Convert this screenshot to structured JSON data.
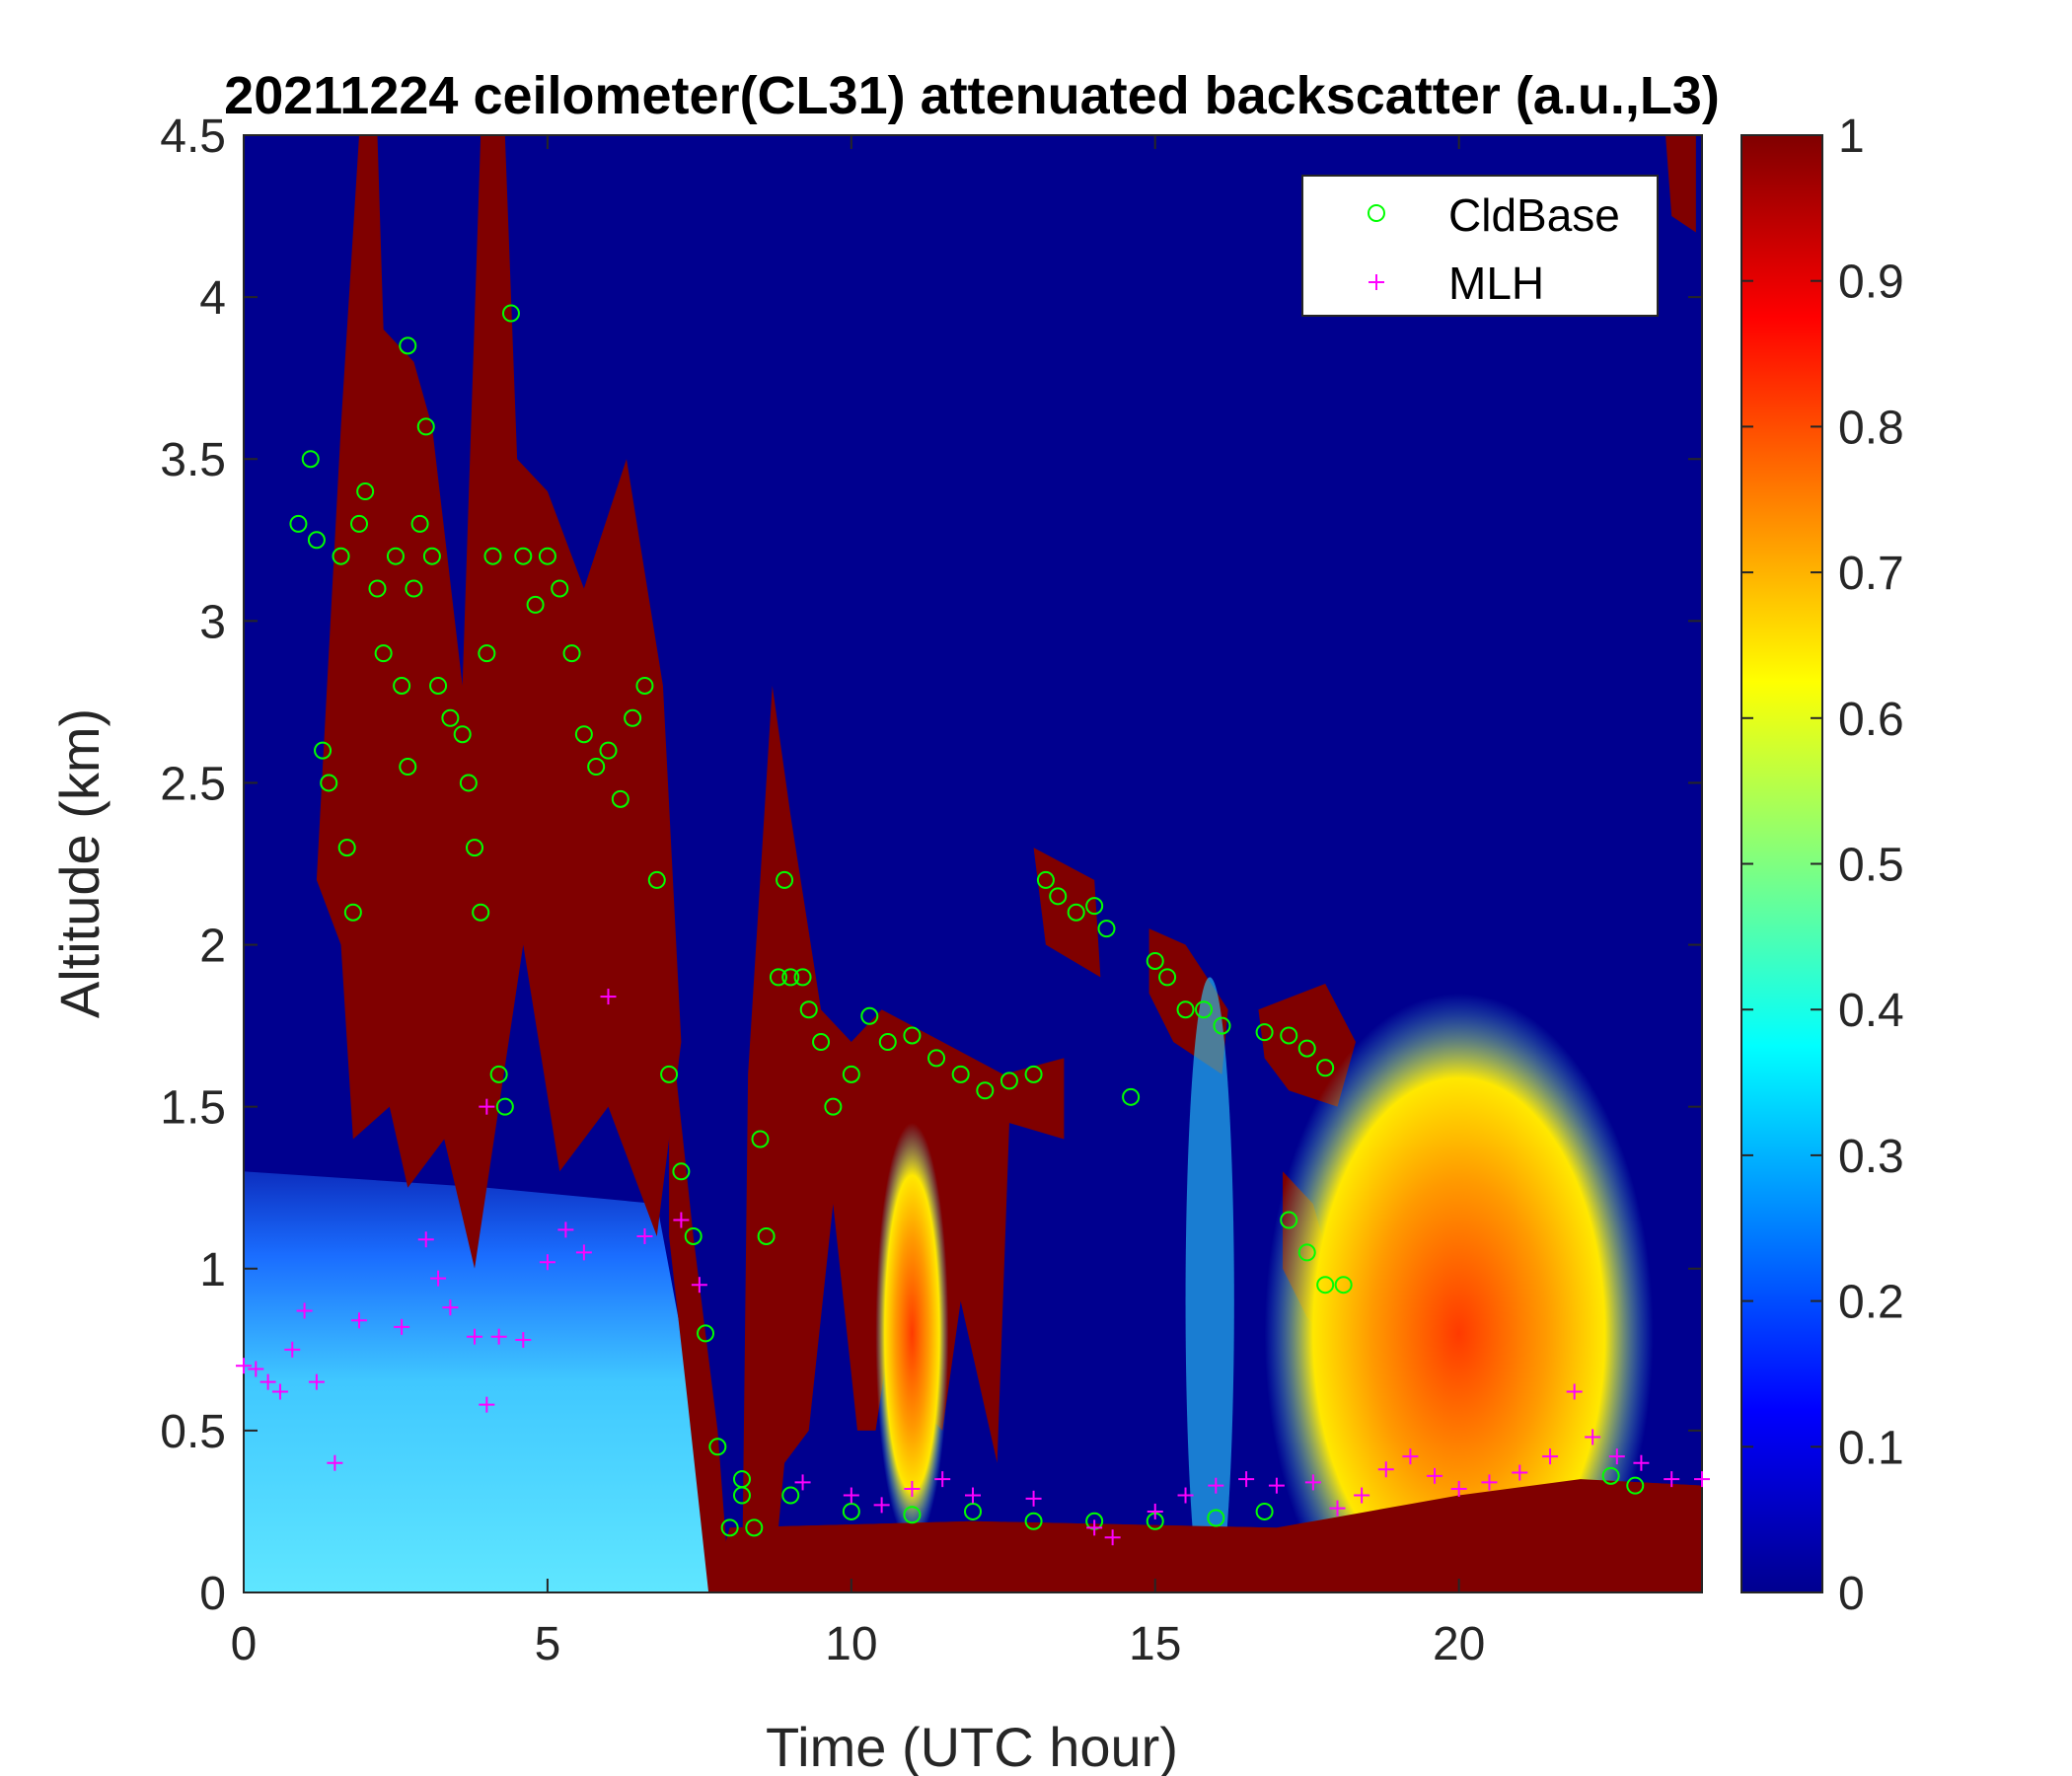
{
  "chart_data": {
    "type": "heatmap",
    "title": "20211224 ceilometer(CL31) attenuated backscatter (a.u.,L3)",
    "xlabel": "Time (UTC hour)",
    "ylabel": "Altitude (km)",
    "xlim": [
      0,
      24
    ],
    "ylim": [
      0,
      4.5
    ],
    "xticks": [
      0,
      5,
      10,
      15,
      20
    ],
    "yticks": [
      0,
      0.5,
      1,
      1.5,
      2,
      2.5,
      3,
      3.5,
      4,
      4.5
    ],
    "colorbar": {
      "range": [
        0,
        1
      ],
      "ticks": [
        0,
        0.1,
        0.2,
        0.3,
        0.4,
        0.5,
        0.6,
        0.7,
        0.8,
        0.9,
        1
      ],
      "colormap": "jet"
    },
    "legend": {
      "placement": "top-right",
      "entries": [
        {
          "name": "CldBase",
          "marker": "circle",
          "color": "#00ff00"
        },
        {
          "name": "MLH",
          "marker": "plus",
          "color": "#ff00ff"
        }
      ]
    },
    "series": [
      {
        "name": "CldBase",
        "points": [
          [
            0.9,
            3.3
          ],
          [
            1.1,
            3.5
          ],
          [
            1.2,
            3.25
          ],
          [
            1.3,
            2.6
          ],
          [
            1.4,
            2.5
          ],
          [
            1.6,
            3.2
          ],
          [
            1.7,
            2.3
          ],
          [
            1.8,
            2.1
          ],
          [
            1.9,
            3.3
          ],
          [
            2.0,
            3.4
          ],
          [
            2.2,
            3.1
          ],
          [
            2.3,
            2.9
          ],
          [
            2.5,
            3.2
          ],
          [
            2.6,
            2.8
          ],
          [
            2.7,
            2.55
          ],
          [
            2.8,
            3.1
          ],
          [
            2.9,
            3.3
          ],
          [
            3.0,
            3.6
          ],
          [
            3.1,
            3.2
          ],
          [
            3.2,
            2.8
          ],
          [
            3.4,
            2.7
          ],
          [
            3.6,
            2.65
          ],
          [
            3.7,
            2.5
          ],
          [
            3.8,
            2.3
          ],
          [
            3.9,
            2.1
          ],
          [
            4.0,
            2.9
          ],
          [
            4.1,
            3.2
          ],
          [
            4.2,
            1.6
          ],
          [
            4.3,
            1.5
          ],
          [
            4.6,
            3.2
          ],
          [
            4.8,
            3.05
          ],
          [
            5.0,
            3.2
          ],
          [
            5.2,
            3.1
          ],
          [
            5.4,
            2.9
          ],
          [
            5.6,
            2.65
          ],
          [
            5.8,
            2.55
          ],
          [
            6.0,
            2.6
          ],
          [
            6.2,
            2.45
          ],
          [
            6.4,
            2.7
          ],
          [
            6.6,
            2.8
          ],
          [
            6.8,
            2.2
          ],
          [
            7.0,
            1.6
          ],
          [
            7.2,
            1.3
          ],
          [
            7.4,
            1.1
          ],
          [
            7.6,
            0.8
          ],
          [
            7.8,
            0.45
          ],
          [
            8.0,
            0.2
          ],
          [
            8.2,
            0.35
          ],
          [
            8.4,
            0.2
          ],
          [
            8.5,
            1.4
          ],
          [
            8.6,
            1.1
          ],
          [
            8.8,
            1.9
          ],
          [
            8.9,
            2.2
          ],
          [
            9.0,
            1.9
          ],
          [
            9.2,
            1.9
          ],
          [
            9.3,
            1.8
          ],
          [
            9.5,
            1.7
          ],
          [
            9.7,
            1.5
          ],
          [
            10.0,
            1.6
          ],
          [
            10.3,
            1.78
          ],
          [
            10.6,
            1.7
          ],
          [
            11.0,
            1.72
          ],
          [
            11.4,
            1.65
          ],
          [
            11.8,
            1.6
          ],
          [
            12.2,
            1.55
          ],
          [
            12.6,
            1.58
          ],
          [
            13.0,
            1.6
          ],
          [
            13.2,
            2.2
          ],
          [
            13.4,
            2.15
          ],
          [
            13.7,
            2.1
          ],
          [
            14.0,
            2.12
          ],
          [
            14.2,
            2.05
          ],
          [
            14.6,
            1.53
          ],
          [
            15.0,
            1.95
          ],
          [
            15.2,
            1.9
          ],
          [
            15.5,
            1.8
          ],
          [
            15.8,
            1.8
          ],
          [
            16.1,
            1.75
          ],
          [
            16.8,
            1.73
          ],
          [
            17.2,
            1.72
          ],
          [
            17.5,
            1.68
          ],
          [
            17.8,
            1.62
          ],
          [
            17.2,
            1.15
          ],
          [
            17.5,
            1.05
          ],
          [
            17.8,
            0.95
          ],
          [
            18.1,
            0.95
          ],
          [
            8.2,
            0.3
          ],
          [
            9.0,
            0.3
          ],
          [
            10.0,
            0.25
          ],
          [
            11.0,
            0.24
          ],
          [
            12.0,
            0.25
          ],
          [
            13.0,
            0.22
          ],
          [
            14.0,
            0.22
          ],
          [
            15.0,
            0.22
          ],
          [
            16.0,
            0.23
          ],
          [
            16.8,
            0.25
          ],
          [
            22.5,
            0.36
          ],
          [
            22.9,
            0.33
          ],
          [
            4.4,
            3.95
          ],
          [
            2.7,
            3.85
          ]
        ]
      },
      {
        "name": "MLH",
        "points": [
          [
            0.0,
            0.7
          ],
          [
            0.2,
            0.69
          ],
          [
            0.4,
            0.65
          ],
          [
            0.6,
            0.62
          ],
          [
            0.8,
            0.75
          ],
          [
            1.0,
            0.87
          ],
          [
            1.2,
            0.65
          ],
          [
            1.5,
            0.4
          ],
          [
            1.9,
            0.84
          ],
          [
            2.6,
            0.82
          ],
          [
            3.0,
            1.09
          ],
          [
            3.2,
            0.97
          ],
          [
            3.4,
            0.88
          ],
          [
            3.8,
            0.79
          ],
          [
            4.0,
            0.58
          ],
          [
            4.2,
            0.79
          ],
          [
            4.6,
            0.78
          ],
          [
            4.0,
            1.5
          ],
          [
            5.0,
            1.02
          ],
          [
            5.3,
            1.12
          ],
          [
            5.6,
            1.05
          ],
          [
            6.0,
            1.84
          ],
          [
            6.6,
            1.1
          ],
          [
            7.2,
            1.15
          ],
          [
            7.5,
            0.95
          ],
          [
            9.2,
            0.34
          ],
          [
            10.0,
            0.3
          ],
          [
            10.5,
            0.27
          ],
          [
            11.0,
            0.32
          ],
          [
            11.5,
            0.35
          ],
          [
            12.0,
            0.3
          ],
          [
            13.0,
            0.29
          ],
          [
            14.0,
            0.2
          ],
          [
            14.3,
            0.17
          ],
          [
            15.0,
            0.25
          ],
          [
            15.5,
            0.3
          ],
          [
            16.0,
            0.33
          ],
          [
            16.5,
            0.35
          ],
          [
            17.0,
            0.33
          ],
          [
            17.6,
            0.34
          ],
          [
            18.0,
            0.26
          ],
          [
            18.4,
            0.3
          ],
          [
            18.8,
            0.38
          ],
          [
            19.2,
            0.42
          ],
          [
            19.6,
            0.36
          ],
          [
            20.0,
            0.32
          ],
          [
            20.5,
            0.34
          ],
          [
            21.0,
            0.37
          ],
          [
            21.5,
            0.42
          ],
          [
            21.9,
            0.62
          ],
          [
            22.2,
            0.48
          ],
          [
            22.6,
            0.42
          ],
          [
            23.0,
            0.4
          ],
          [
            23.5,
            0.35
          ],
          [
            24.0,
            0.35
          ]
        ]
      }
    ]
  }
}
